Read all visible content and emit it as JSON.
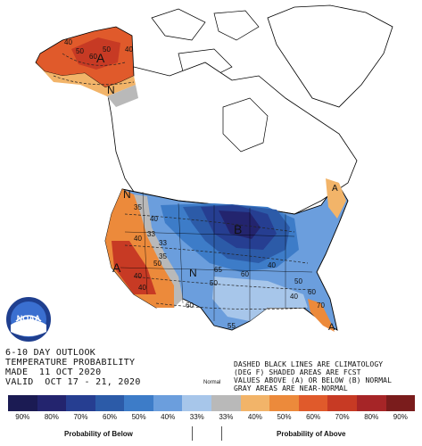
{
  "caption": {
    "line1": "6-10 DAY OUTLOOK",
    "line2": "TEMPERATURE PROBABILITY",
    "line3": "MADE  11 OCT 2020",
    "line4": "VALID  OCT 17 - 21, 2020"
  },
  "note": {
    "line1": "DASHED BLACK LINES ARE CLIMATOLOGY",
    "line2": "(DEG F) SHADED AREAS ARE FCST",
    "line3": "VALUES ABOVE (A) OR BELOW (B) NORMAL",
    "line4": "GRAY AREAS ARE NEAR-NORMAL"
  },
  "logo": {
    "text": "NOAA"
  },
  "map_labels": {
    "alaska_A": "A",
    "alaska_N": "N",
    "west_A": "A",
    "west_N": "N",
    "rockies_N": "N",
    "central_B": "B",
    "florida_A": "A",
    "northeast_A": "A"
  },
  "contour_labels": [
    {
      "text": "40"
    },
    {
      "text": "50"
    },
    {
      "text": "60"
    },
    {
      "text": "50"
    },
    {
      "text": "40"
    },
    {
      "text": "35"
    },
    {
      "text": "40"
    },
    {
      "text": "33"
    },
    {
      "text": "40"
    },
    {
      "text": "33"
    },
    {
      "text": "35"
    },
    {
      "text": "50"
    },
    {
      "text": "40"
    },
    {
      "text": "40"
    },
    {
      "text": "60"
    },
    {
      "text": "50"
    },
    {
      "text": "65"
    },
    {
      "text": "60"
    },
    {
      "text": "40"
    },
    {
      "text": "50"
    },
    {
      "text": "60"
    },
    {
      "text": "70"
    },
    {
      "text": "55"
    },
    {
      "text": "40"
    }
  ],
  "legend": {
    "normal_label": "Normal",
    "below_label": "Probability of Below",
    "above_label": "Probability of Above",
    "cells": [
      {
        "label": "90%",
        "color": "#1b1b53"
      },
      {
        "label": "80%",
        "color": "#23246e"
      },
      {
        "label": "70%",
        "color": "#263e91"
      },
      {
        "label": "60%",
        "color": "#2c5ba8"
      },
      {
        "label": "50%",
        "color": "#3d7cc8"
      },
      {
        "label": "40%",
        "color": "#6b9edd"
      },
      {
        "label": "33%",
        "color": "#a7c6ea"
      },
      {
        "label": "33%",
        "color": "#b9b9b9"
      },
      {
        "label": "40%",
        "color": "#f2b469"
      },
      {
        "label": "50%",
        "color": "#ec8a3b"
      },
      {
        "label": "60%",
        "color": "#e05a2b"
      },
      {
        "label": "70%",
        "color": "#c73a24"
      },
      {
        "label": "80%",
        "color": "#a62527"
      },
      {
        "label": "90%",
        "color": "#7a1c1c"
      }
    ]
  }
}
